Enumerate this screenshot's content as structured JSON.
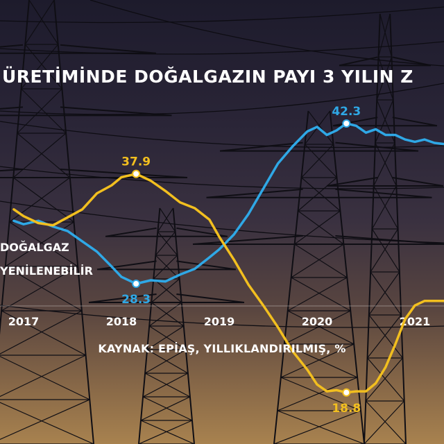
{
  "colors": {
    "dogalgaz": "#2fa8e6",
    "yenilenebilir": "#f2bf1f",
    "text": "#ffffff"
  },
  "title": "ÜRETİMİNDE DOĞALGAZIN PAYI 3 YILIN Z",
  "source": "KAYNAK: EPİAŞ, YILLIKLANDIRILMIŞ, %",
  "legend": {
    "dogalgaz": "DOĞALGAZ",
    "yenilenebilir": "YENİLENEBİLİR"
  },
  "chart_data": {
    "type": "line",
    "title": "ÜRETİMİNDE DOĞALGAZIN PAYI 3 YILIN Z",
    "xlabel": "",
    "ylabel": "",
    "x_ticks": [
      "2017",
      "2018",
      "2019",
      "2020",
      "2021"
    ],
    "grid": false,
    "legend_position": "left",
    "series": [
      {
        "name": "DOĞALGAZ",
        "color": "#2fa8e6",
        "x": [
          2016.9,
          2017.0,
          2017.15,
          2017.3,
          2017.45,
          2017.6,
          2017.75,
          2017.9,
          2018.0,
          2018.15,
          2018.3,
          2018.45,
          2018.6,
          2018.75,
          2018.9,
          2019.0,
          2019.15,
          2019.3,
          2019.45,
          2019.6,
          2019.75,
          2019.9,
          2020.0,
          2020.1,
          2020.2,
          2020.3,
          2020.4,
          2020.5,
          2020.6,
          2020.7,
          2020.8,
          2020.9,
          2021.0,
          2021.1,
          2021.2,
          2021.3,
          2021.35
        ],
        "values": [
          33.8,
          33.5,
          33.8,
          33.3,
          32.9,
          32.0,
          31.1,
          29.8,
          28.9,
          28.3,
          28.6,
          28.5,
          29.1,
          29.6,
          30.6,
          31.3,
          32.6,
          34.4,
          36.6,
          38.8,
          40.3,
          41.6,
          42.0,
          41.3,
          41.7,
          42.3,
          42.1,
          41.5,
          41.8,
          41.3,
          41.3,
          40.9,
          40.7,
          40.9,
          40.6,
          40.5,
          40.6
        ]
      },
      {
        "name": "YENİLENEBİLİR",
        "color": "#f2bf1f",
        "x": [
          2016.9,
          2017.0,
          2017.15,
          2017.3,
          2017.45,
          2017.6,
          2017.75,
          2017.9,
          2018.0,
          2018.15,
          2018.3,
          2018.45,
          2018.6,
          2018.75,
          2018.9,
          2019.0,
          2019.15,
          2019.3,
          2019.45,
          2019.6,
          2019.75,
          2019.9,
          2020.0,
          2020.1,
          2020.2,
          2020.3,
          2020.4,
          2020.5,
          2020.6,
          2020.7,
          2020.8,
          2020.9,
          2021.0,
          2021.1,
          2021.2,
          2021.3,
          2021.35
        ],
        "values": [
          34.8,
          34.2,
          33.6,
          33.4,
          34.1,
          34.8,
          36.2,
          36.9,
          37.6,
          37.9,
          37.3,
          36.4,
          35.4,
          34.9,
          33.9,
          32.4,
          30.4,
          28.2,
          26.4,
          24.5,
          22.4,
          20.8,
          19.5,
          18.9,
          19.0,
          18.8,
          18.9,
          18.9,
          19.6,
          21.0,
          23.0,
          25.2,
          26.4,
          26.8,
          26.8,
          26.8,
          26.8
        ]
      }
    ],
    "annotations": [
      {
        "series": "DOĞALGAZ",
        "x": 2018.15,
        "value": 28.3,
        "label": "28.3",
        "pos": "below"
      },
      {
        "series": "DOĞALGAZ",
        "x": 2020.3,
        "value": 42.3,
        "label": "42.3",
        "pos": "above"
      },
      {
        "series": "YENİLENEBİLİR",
        "x": 2018.15,
        "value": 37.9,
        "label": "37.9",
        "pos": "above"
      },
      {
        "series": "YENİLENEBİLİR",
        "x": 2020.3,
        "value": 18.8,
        "label": "18.8",
        "pos": "below"
      }
    ]
  }
}
